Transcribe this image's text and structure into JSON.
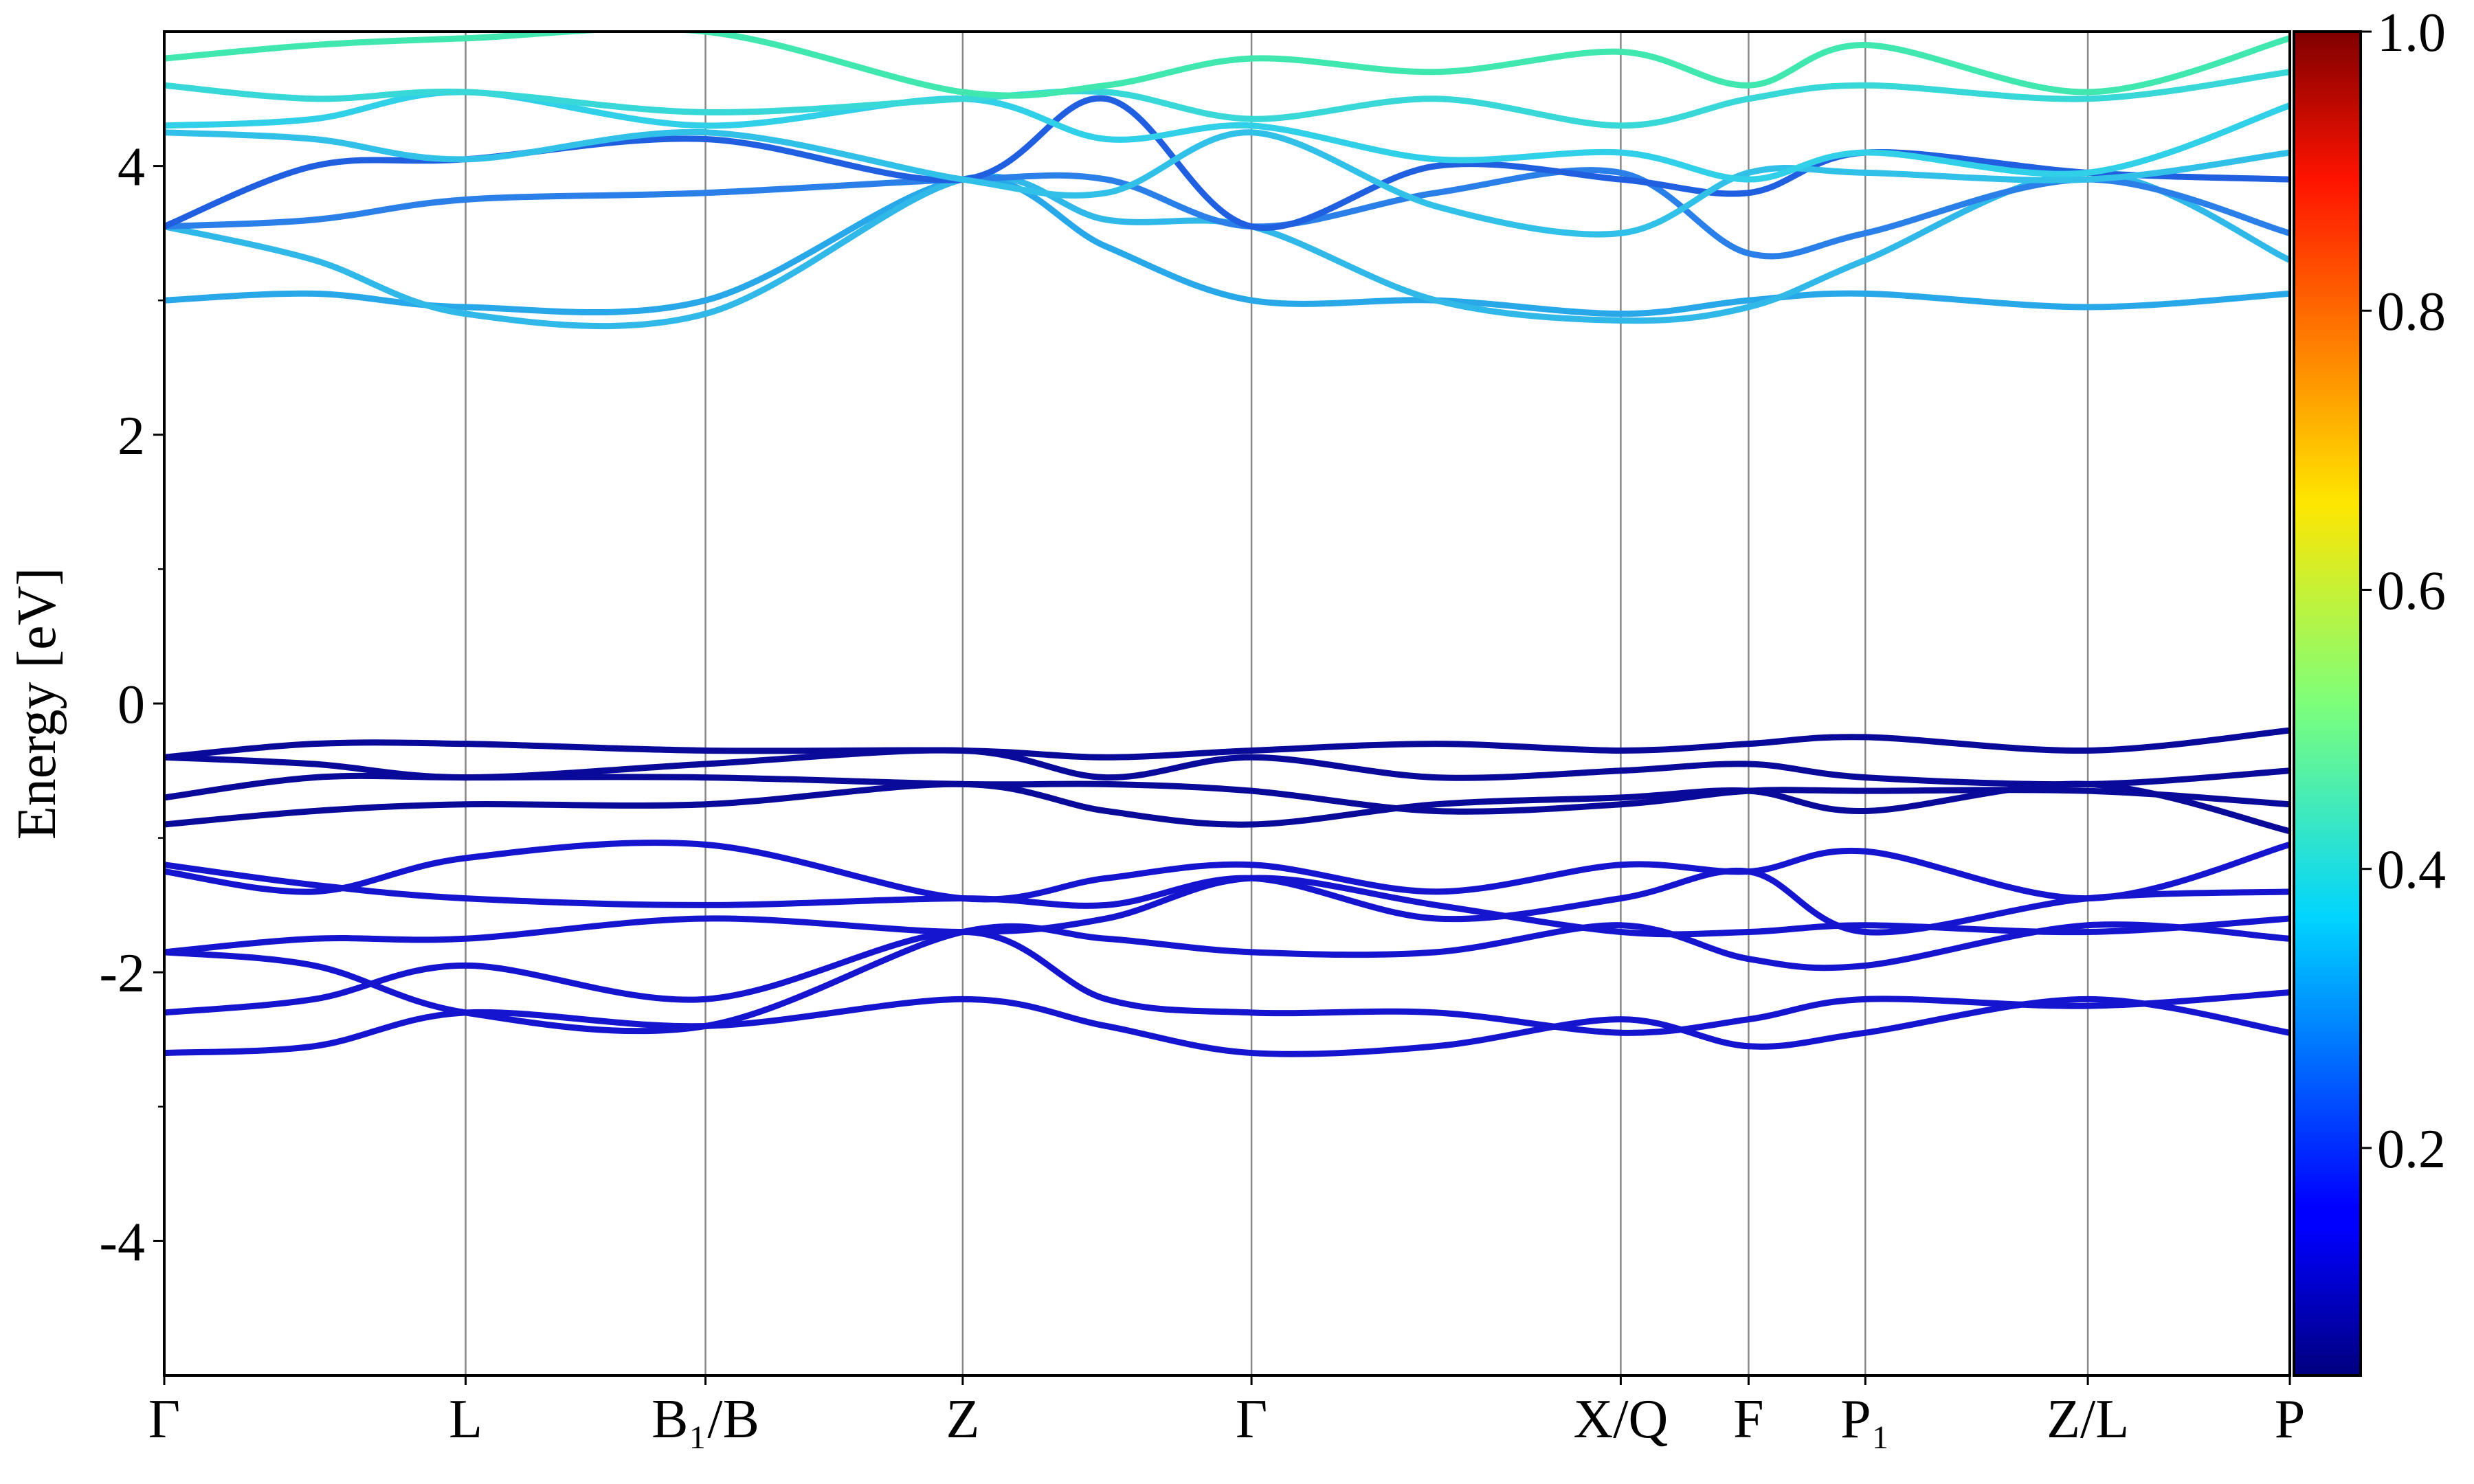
{
  "chart_data": {
    "type": "line",
    "ylabel": "Energy [eV]",
    "xlim": [
      0,
      1347
    ],
    "xticks": [
      {
        "value": 0,
        "label": "Γ"
      },
      {
        "value": 191,
        "label": "L"
      },
      {
        "value": 343,
        "label": "B₁/B"
      },
      {
        "value": 506,
        "label": "Z"
      },
      {
        "value": 689,
        "label": "Γ"
      },
      {
        "value": 923,
        "label": "X/Q"
      },
      {
        "value": 1004,
        "label": "F"
      },
      {
        "value": 1078,
        "label": "P₁"
      },
      {
        "value": 1219,
        "label": "Z/L"
      },
      {
        "value": 1347,
        "label": "P"
      }
    ],
    "xgrid": true,
    "ylim": [
      -5,
      5
    ],
    "yticks": [
      -4,
      -2,
      0,
      2,
      4
    ],
    "yminorticks": [
      -3,
      -1,
      1,
      3
    ],
    "x": [
      0,
      95,
      191,
      343,
      506,
      597,
      689,
      806,
      923,
      1004,
      1078,
      1219,
      1347
    ],
    "series": [
      {
        "color": "#1515d0",
        "values": [
          -2.6,
          -2.55,
          -2.3,
          -2.4,
          -2.2,
          -2.4,
          -2.6,
          -2.55,
          -2.35,
          -2.55,
          -2.45,
          -2.2,
          -2.45
        ]
      },
      {
        "color": "#1515d0",
        "values": [
          -2.3,
          -2.2,
          -1.95,
          -2.2,
          -1.7,
          -2.2,
          -2.3,
          -2.3,
          -2.45,
          -2.35,
          -2.2,
          -2.25,
          -2.15
        ]
      },
      {
        "color": "#1515d0",
        "values": [
          -1.85,
          -1.95,
          -2.3,
          -2.4,
          -1.7,
          -1.75,
          -1.85,
          -1.85,
          -1.65,
          -1.9,
          -1.95,
          -1.65,
          -1.75
        ]
      },
      {
        "color": "#1515d0",
        "values": [
          -1.85,
          -1.75,
          -1.75,
          -1.6,
          -1.7,
          -1.6,
          -1.3,
          -1.5,
          -1.7,
          -1.7,
          -1.65,
          -1.7,
          -1.6
        ]
      },
      {
        "color": "#1515d0",
        "values": [
          -1.2,
          -1.35,
          -1.45,
          -1.5,
          -1.45,
          -1.5,
          -1.3,
          -1.6,
          -1.45,
          -1.25,
          -1.7,
          -1.45,
          -1.4
        ]
      },
      {
        "color": "#1515d0",
        "values": [
          -1.25,
          -1.4,
          -1.15,
          -1.05,
          -1.45,
          -1.3,
          -1.2,
          -1.4,
          -1.2,
          -1.25,
          -1.1,
          -1.45,
          -1.05
        ]
      },
      {
        "color": "#0a0a9a",
        "values": [
          -0.9,
          -0.8,
          -0.75,
          -0.75,
          -0.6,
          -0.8,
          -0.9,
          -0.75,
          -0.7,
          -0.65,
          -0.8,
          -0.6,
          -0.95
        ]
      },
      {
        "color": "#0a0a9a",
        "values": [
          -0.7,
          -0.55,
          -0.55,
          -0.55,
          -0.6,
          -0.6,
          -0.65,
          -0.8,
          -0.75,
          -0.65,
          -0.65,
          -0.65,
          -0.75
        ]
      },
      {
        "color": "#0a0a9a",
        "values": [
          -0.4,
          -0.45,
          -0.55,
          -0.45,
          -0.35,
          -0.55,
          -0.4,
          -0.55,
          -0.5,
          -0.45,
          -0.55,
          -0.6,
          -0.5
        ]
      },
      {
        "color": "#0a0a9a",
        "values": [
          -0.4,
          -0.3,
          -0.3,
          -0.35,
          -0.35,
          -0.4,
          -0.35,
          -0.3,
          -0.35,
          -0.3,
          -0.25,
          -0.35,
          -0.2
        ]
      },
      {
        "color": "#28a8e8",
        "values": [
          3.0,
          3.05,
          2.95,
          3.0,
          3.9,
          3.4,
          3.0,
          3.0,
          2.9,
          3.0,
          3.05,
          2.95,
          3.05
        ]
      },
      {
        "color": "#30b8e8",
        "values": [
          3.55,
          3.3,
          2.9,
          2.9,
          3.9,
          3.6,
          3.55,
          3.0,
          2.85,
          2.95,
          3.3,
          3.95,
          3.3
        ]
      },
      {
        "color": "#2a80e8",
        "values": [
          3.55,
          3.6,
          3.75,
          3.8,
          3.9,
          3.9,
          3.55,
          3.8,
          3.95,
          3.35,
          3.5,
          3.9,
          3.5
        ]
      },
      {
        "color": "#2060e0",
        "values": [
          3.55,
          4.0,
          4.05,
          4.2,
          3.9,
          4.5,
          3.55,
          4.0,
          3.9,
          3.8,
          4.1,
          3.95,
          3.9
        ]
      },
      {
        "color": "#30c0e8",
        "values": [
          4.25,
          4.2,
          4.05,
          4.25,
          3.9,
          3.8,
          4.25,
          3.7,
          3.5,
          3.95,
          3.95,
          3.9,
          4.1
        ]
      },
      {
        "color": "#30d0e8",
        "values": [
          4.3,
          4.35,
          4.55,
          4.3,
          4.5,
          4.2,
          4.3,
          4.05,
          4.1,
          3.9,
          4.1,
          3.95,
          4.45
        ]
      },
      {
        "color": "#38d8d8",
        "values": [
          4.6,
          4.5,
          4.55,
          4.4,
          4.5,
          4.55,
          4.35,
          4.5,
          4.3,
          4.5,
          4.6,
          4.5,
          4.7
        ]
      },
      {
        "color": "#40e8b0",
        "values": [
          4.8,
          4.9,
          4.95,
          5.0,
          4.55,
          4.6,
          4.8,
          4.7,
          4.85,
          4.6,
          4.9,
          4.55,
          4.95
        ]
      }
    ],
    "colorbar": {
      "cmap": "jet",
      "clim": [
        0.037,
        1.0
      ],
      "ticks": [
        0.2,
        0.4,
        0.6,
        0.8,
        {
          "value": 1.0,
          "label": "1.0"
        }
      ]
    }
  }
}
